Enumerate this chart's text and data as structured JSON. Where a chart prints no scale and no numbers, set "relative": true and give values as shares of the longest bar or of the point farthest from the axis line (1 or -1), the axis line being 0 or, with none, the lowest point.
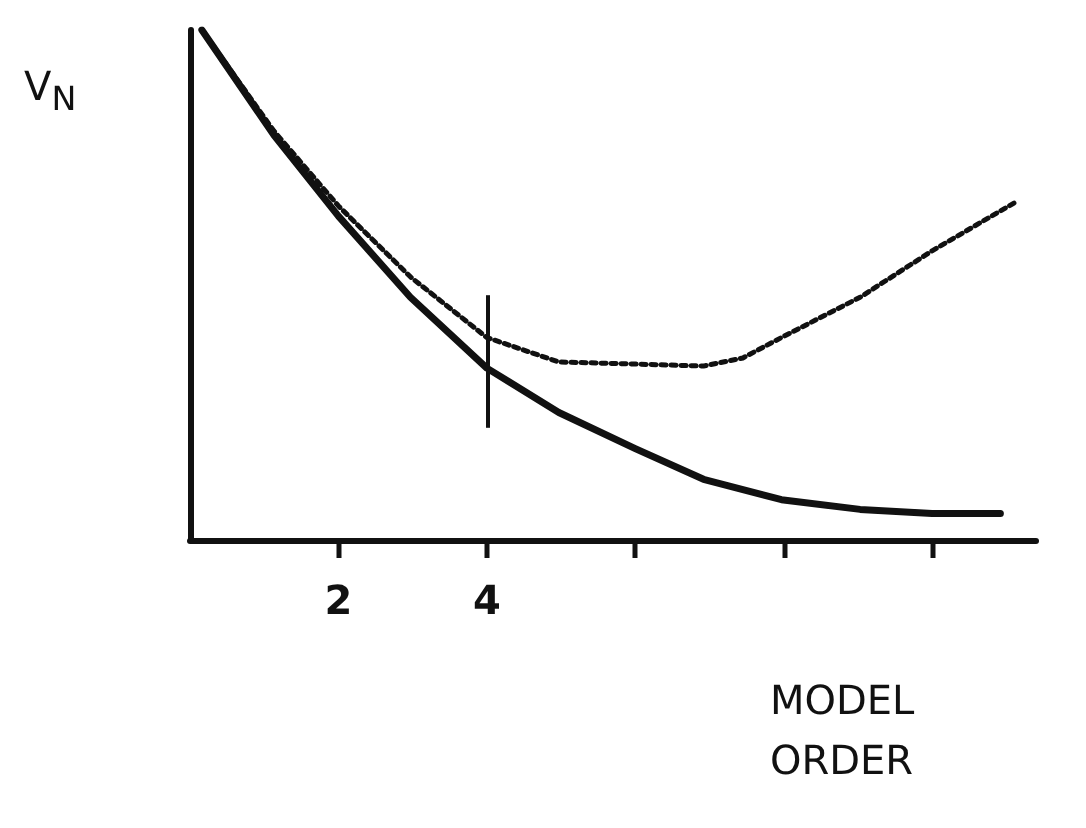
{
  "chart_data": {
    "type": "line",
    "relative": true,
    "xlabel": "MODEL ORDER",
    "ylabel": "V$_{N}$",
    "xlim": [
      0,
      11.4
    ],
    "xticks": [
      2,
      4,
      {
        "value": 6,
        "label": null
      },
      {
        "value": 8,
        "label": null
      },
      {
        "value": 10,
        "label": null
      }
    ],
    "grid": false,
    "marker": "none",
    "series": [
      {
        "color": "#111111",
        "line_style": "solid",
        "x": [
          0.16,
          1.13,
          2,
          2.97,
          4,
          4.97,
          6,
          6.92,
          7.97,
          9.03,
          10,
          10.92
        ],
        "values": [
          1,
          0.794,
          0.635,
          0.476,
          0.337,
          0.25,
          0.179,
          0.119,
          0.079,
          0.06,
          0.052,
          0.052
        ]
      },
      {
        "color": "#111111",
        "line_style": "dotted",
        "x": [
          0.16,
          1.13,
          2,
          2.97,
          4,
          4.97,
          6,
          6.92,
          7.45,
          7.97,
          9.03,
          10,
          11.13
        ],
        "values": [
          1,
          0.802,
          0.655,
          0.516,
          0.397,
          0.349,
          0.345,
          0.341,
          0.357,
          0.397,
          0.476,
          0.567,
          0.663
        ]
      }
    ],
    "ref_lines": [
      {
        "axis": "x",
        "value": 4,
        "color": "#111111",
        "line_style": "solid"
      }
    ]
  }
}
